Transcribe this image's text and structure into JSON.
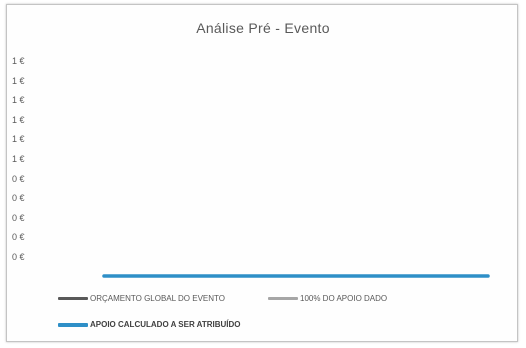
{
  "chart_data": {
    "type": "line",
    "title": "Análise Pré - Evento",
    "xlabel": "",
    "ylabel": "",
    "y_tick_labels": [
      "1 €",
      "1 €",
      "1 €",
      "1 €",
      "1 €",
      "1 €",
      "0 €",
      "0 €",
      "0 €",
      "0 €",
      "0 €"
    ],
    "ylim": [
      0,
      1
    ],
    "grid": false,
    "legend_position": "bottom",
    "x": [
      0,
      1
    ],
    "series": [
      {
        "name": "ORÇAMENTO GLOBAL DO EVENTO",
        "values": [
          0,
          0
        ],
        "color": "#595959"
      },
      {
        "name": "100% DO APOIO DADO",
        "values": [
          0,
          0
        ],
        "color": "#a6a6a6"
      },
      {
        "name": "APOIO CALCULADO A SER ATRIBUÍDO",
        "values": [
          0,
          0
        ],
        "color": "#2e8fc7"
      }
    ]
  }
}
